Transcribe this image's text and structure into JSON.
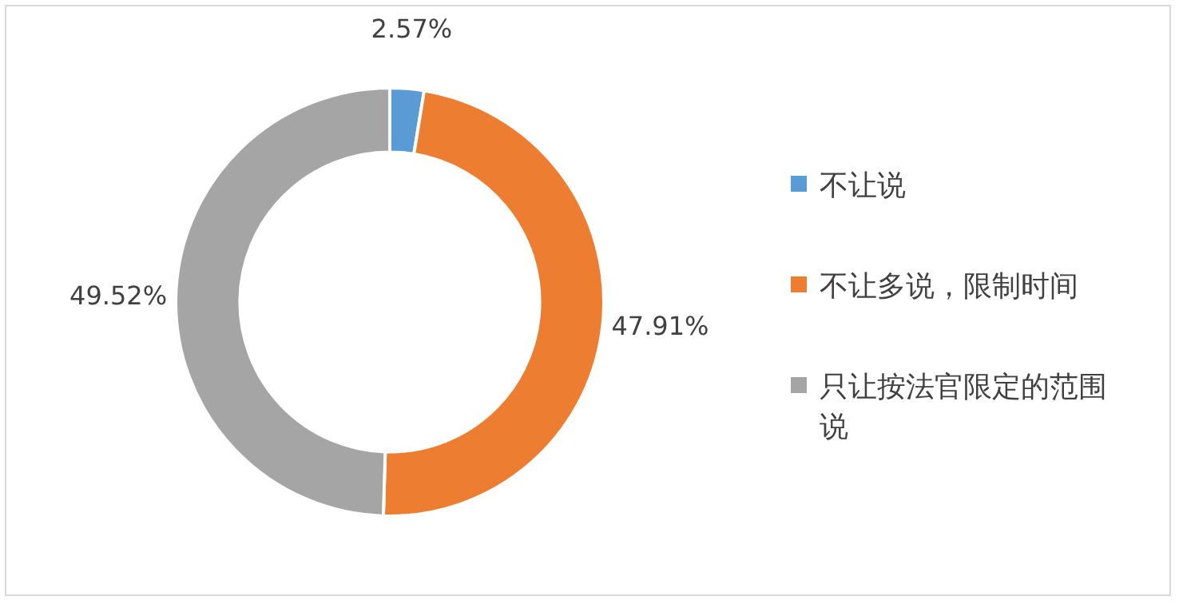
{
  "chart_data": {
    "type": "donut",
    "categories": [
      "不让说",
      "不让多说，限制时间",
      "只让按法官限定的范围说"
    ],
    "values": [
      2.57,
      47.91,
      49.52
    ],
    "colors": [
      "#5b9bd5",
      "#ed7d31",
      "#a5a5a5"
    ],
    "value_labels": [
      "2.57%",
      "47.91%",
      "49.52%"
    ],
    "legend": "right"
  }
}
